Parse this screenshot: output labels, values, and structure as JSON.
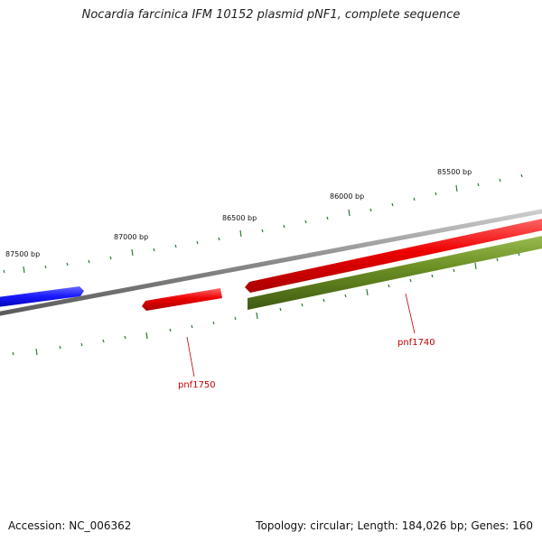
{
  "title": "Nocardia farcinica IFM 10152 plasmid pNF1, complete sequence",
  "footer": {
    "accession": "Accession: NC_006362",
    "summary": "Topology: circular; Length: 184,026 bp; Genes: 160"
  },
  "colors": {
    "backbone": "#8a8a8a",
    "forward_gene": "#ee0000",
    "reverse_gene": "#6b8e23",
    "blue_gene": "#1a1aff",
    "tick": "#2e7d32",
    "gene_label": "#c00000"
  },
  "scale_labels": [
    "85500 bp",
    "86000 bp",
    "86500 bp",
    "87000 bp",
    "87500 bp"
  ],
  "gene_labels": {
    "pnf1740": "pnf1740",
    "pnf1750": "pnf1750"
  }
}
